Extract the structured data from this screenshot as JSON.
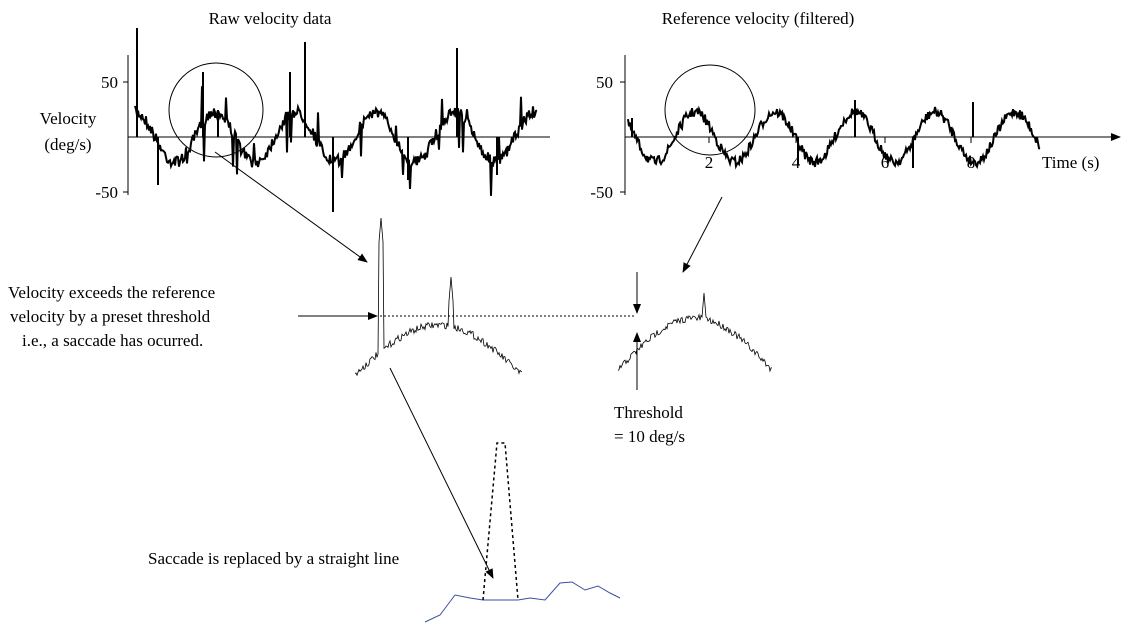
{
  "panels": [
    {
      "title": "Raw velocity data",
      "y_label": [
        "Velocity",
        "(deg/s)"
      ],
      "yticks": [
        "50",
        "-50"
      ]
    },
    {
      "title": "Reference velocity (filtered)",
      "yticks": [
        "50",
        "-50"
      ],
      "xticks": [
        "2",
        "4",
        "6",
        "8"
      ],
      "x_label": "Time (s)"
    }
  ],
  "annotations": {
    "saccade_detect": [
      "Velocity exceeds the reference",
      "velocity by a preset threshold",
      "i.e., a saccade has ocurred."
    ],
    "threshold": [
      "Threshold",
      "= 10 deg/s"
    ],
    "replaced": "Saccade is replaced by a straight line"
  }
}
